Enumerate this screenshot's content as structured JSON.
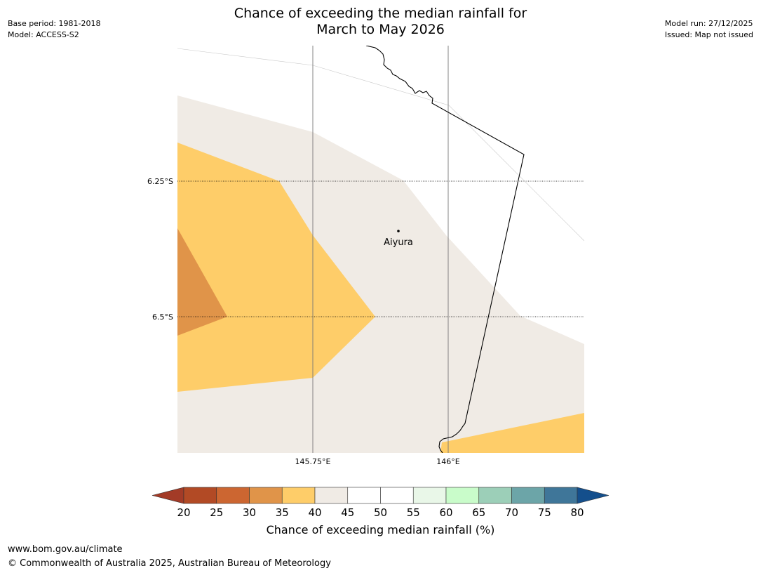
{
  "title": {
    "line1": "Chance of exceeding the median rainfall for",
    "line2": "March to May 2026"
  },
  "meta_left": {
    "base_period": "Base period: 1981-2018",
    "model": "Model: ACCESS-S2"
  },
  "meta_right": {
    "model_run": "Model run: 27/12/2025",
    "issued": "Issued: Map not issued"
  },
  "map": {
    "latitude_labels": [
      "6.25°S",
      "6.5°S"
    ],
    "longitude_labels": [
      "145.75°E",
      "146°E"
    ],
    "place": {
      "name": "Aiyura"
    }
  },
  "colorbar": {
    "ticks": [
      "20",
      "25",
      "30",
      "35",
      "40",
      "45",
      "50",
      "55",
      "60",
      "65",
      "70",
      "75",
      "80"
    ],
    "colors": [
      "#a33b27",
      "#b24a25",
      "#cc6631",
      "#e09449",
      "#fecd69",
      "#f0ebe5",
      "#ffffff",
      "#ffffff",
      "#e9f7e8",
      "#c9fcca",
      "#9ccfb8",
      "#6ca5a8",
      "#3f7699",
      "#144f8c"
    ],
    "title": "Chance of exceeding median rainfall (%)"
  },
  "fill_colors": {
    "light": "#f0ebe5",
    "yellow": "#fecd69",
    "orange": "#e09449"
  },
  "footer": {
    "url": "www.bom.gov.au/climate",
    "copyright": "© Commonwealth of Australia 2025, Australian Bureau of Meteorology"
  }
}
